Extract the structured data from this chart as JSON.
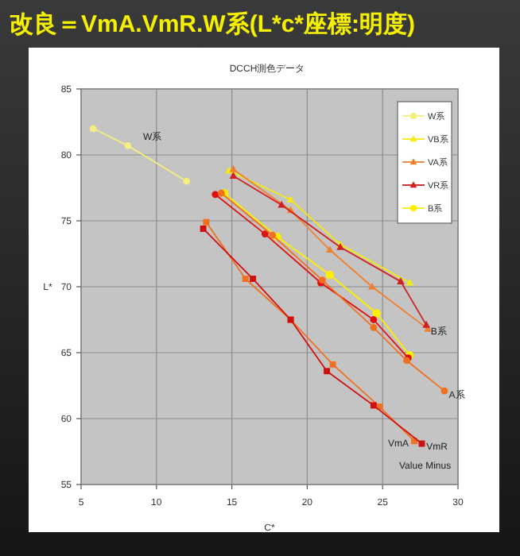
{
  "chart_data": {
    "type": "line",
    "title": "改良＝VmA.VmR.W系(L*c*座標:明度)",
    "subtitle": "DCCH測色データ",
    "xlabel": "C*",
    "ylabel": "L*",
    "xlim": [
      5,
      30
    ],
    "ylim": [
      55,
      85
    ],
    "xticks": [
      5,
      10,
      15,
      20,
      25,
      30
    ],
    "yticks": [
      55,
      60,
      65,
      70,
      75,
      80,
      85
    ],
    "grid": true,
    "legend": "top right",
    "series": [
      {
        "name": "W系",
        "color": "#f4ee80",
        "marker": "circle",
        "x": [
          5.8,
          8.1,
          12.0
        ],
        "values": [
          82.0,
          80.7,
          78.0
        ]
      },
      {
        "name": "VB系",
        "color": "#f2ea10",
        "marker": "triangle",
        "x": [
          14.8,
          18.9,
          22.2,
          26.8
        ],
        "values": [
          78.8,
          76.6,
          73.2,
          70.3
        ]
      },
      {
        "name": "VA系",
        "color": "#f08030",
        "marker": "triangle",
        "x": [
          15.1,
          18.9,
          21.5,
          24.3,
          28.0
        ],
        "values": [
          78.9,
          75.8,
          72.8,
          70.0,
          66.8
        ]
      },
      {
        "name": "VR系",
        "color": "#d02020",
        "marker": "triangle",
        "x": [
          15.1,
          18.3,
          22.2,
          26.2,
          27.9
        ],
        "values": [
          78.4,
          76.2,
          73.0,
          70.4,
          67.1
        ]
      },
      {
        "name": "B系",
        "color": "#ffee00",
        "marker": "circle",
        "x": [
          14.5,
          18.0,
          21.5,
          24.6,
          26.8
        ],
        "values": [
          77.1,
          73.8,
          70.9,
          68.0,
          64.8
        ]
      },
      {
        "color": "#e01010",
        "marker": "circle",
        "x": [
          13.9,
          17.2,
          20.9,
          24.4,
          26.7
        ],
        "values": [
          77.0,
          74.0,
          70.3,
          67.5,
          64.6
        ]
      },
      {
        "color": "#f07020",
        "marker": "circle",
        "x": [
          14.3,
          17.7,
          21.0,
          24.4,
          26.6,
          29.1
        ],
        "values": [
          77.1,
          73.9,
          70.5,
          66.9,
          64.4,
          62.1
        ]
      },
      {
        "color": "#f07020",
        "marker": "square",
        "x": [
          13.3,
          15.9,
          18.9,
          21.7,
          24.8,
          27.1
        ],
        "values": [
          74.9,
          70.6,
          67.5,
          64.1,
          60.9,
          58.3
        ]
      },
      {
        "color": "#d01010",
        "marker": "square",
        "x": [
          13.1,
          16.4,
          18.9,
          21.3,
          24.4,
          27.6
        ],
        "values": [
          74.4,
          70.6,
          67.5,
          63.6,
          61.0,
          58.1
        ]
      }
    ],
    "annotations": [
      "W系",
      {
        "text": "B系",
        "x": 28.2,
        "y": 66.6
      },
      {
        "text": "A系",
        "x": 29.4,
        "y": 61.8
      },
      "VmA",
      {
        "text": "VmR",
        "x": 27.9,
        "y": 57.9
      },
      "Value Minus"
    ]
  }
}
